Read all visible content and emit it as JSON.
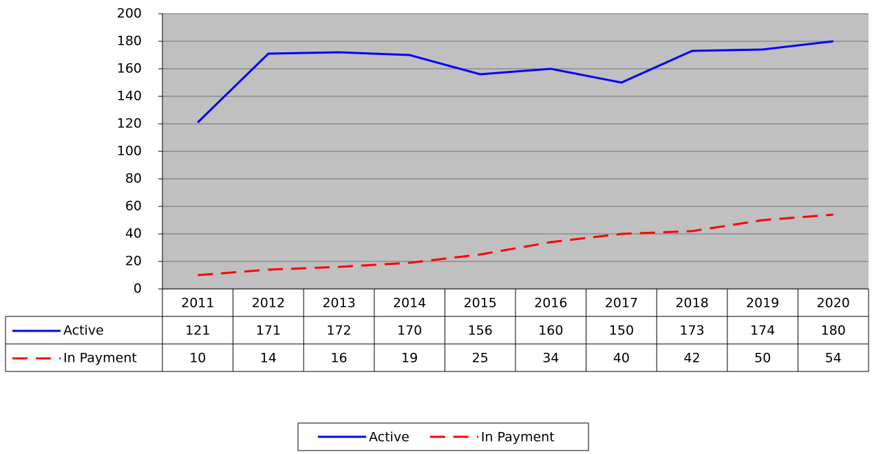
{
  "chart_data": {
    "type": "line",
    "categories": [
      "2011",
      "2012",
      "2013",
      "2014",
      "2015",
      "2016",
      "2017",
      "2018",
      "2019",
      "2020"
    ],
    "series": [
      {
        "name": "Active",
        "color": "#0000ff",
        "dash": false,
        "values": [
          121,
          171,
          172,
          170,
          156,
          160,
          150,
          173,
          174,
          180
        ]
      },
      {
        "name": "In Payment",
        "color": "#ff0000",
        "dash": true,
        "values": [
          10,
          14,
          16,
          19,
          25,
          34,
          40,
          42,
          50,
          54
        ]
      }
    ],
    "ylim": [
      0,
      200
    ],
    "yticks": [
      0,
      20,
      40,
      60,
      80,
      100,
      120,
      140,
      160,
      180,
      200
    ],
    "grid": true,
    "data_table": true,
    "legend": "bottom"
  }
}
